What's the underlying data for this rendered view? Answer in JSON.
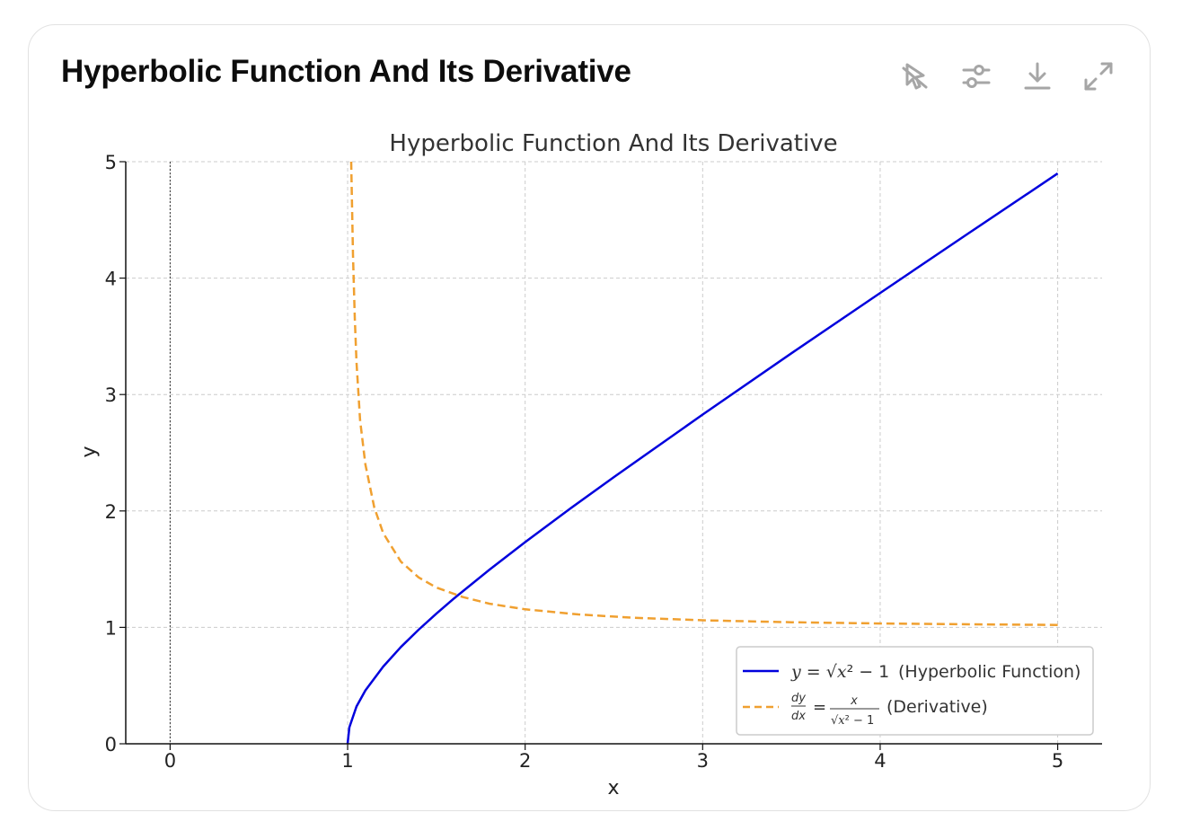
{
  "card": {
    "title": "Hyperbolic Function And Its Derivative"
  },
  "toolbar": {
    "icons": [
      "cursor-off-icon",
      "sliders-icon",
      "download-icon",
      "expand-icon"
    ]
  },
  "chart_data": {
    "type": "line",
    "title": "Hyperbolic Function And Its Derivative",
    "xlabel": "x",
    "ylabel": "y",
    "xlim": [
      -0.25,
      5.25
    ],
    "ylim": [
      0,
      5
    ],
    "xticks": [
      0,
      1,
      2,
      3,
      4,
      5
    ],
    "yticks": [
      0,
      1,
      2,
      3,
      4,
      5
    ],
    "grid": true,
    "grid_style": "dashed",
    "legend_position": "lower-right",
    "reference_line": {
      "x": 0,
      "style": "dotted",
      "color": "#333333"
    },
    "series": [
      {
        "name": "(Hyperbolic Function)",
        "legend_math": "y = √x² − 1",
        "color": "#0000dd",
        "style": "solid",
        "x": [
          1.0,
          1.01,
          1.05,
          1.1,
          1.2,
          1.3,
          1.4,
          1.5,
          1.6,
          1.8,
          2.0,
          2.25,
          2.5,
          3.0,
          3.5,
          4.0,
          4.5,
          5.0
        ],
        "y": [
          0.0,
          0.142,
          0.32,
          0.458,
          0.663,
          0.831,
          0.98,
          1.118,
          1.249,
          1.497,
          1.732,
          2.016,
          2.291,
          2.828,
          3.354,
          3.873,
          4.387,
          4.899
        ]
      },
      {
        "name": "(Derivative)",
        "legend_math": "dy/dx = x/√x² − 1",
        "color": "#f0a030",
        "style": "dashed",
        "x": [
          1.02,
          1.03,
          1.04,
          1.05,
          1.07,
          1.1,
          1.15,
          1.2,
          1.3,
          1.4,
          1.5,
          1.65,
          1.8,
          2.0,
          2.3,
          2.6,
          3.0,
          3.5,
          4.0,
          4.5,
          5.0
        ],
        "y": [
          5.0,
          4.2,
          3.66,
          3.28,
          2.78,
          2.4,
          2.03,
          1.81,
          1.565,
          1.429,
          1.342,
          1.26,
          1.203,
          1.155,
          1.111,
          1.083,
          1.061,
          1.044,
          1.033,
          1.026,
          1.021
        ]
      }
    ]
  }
}
